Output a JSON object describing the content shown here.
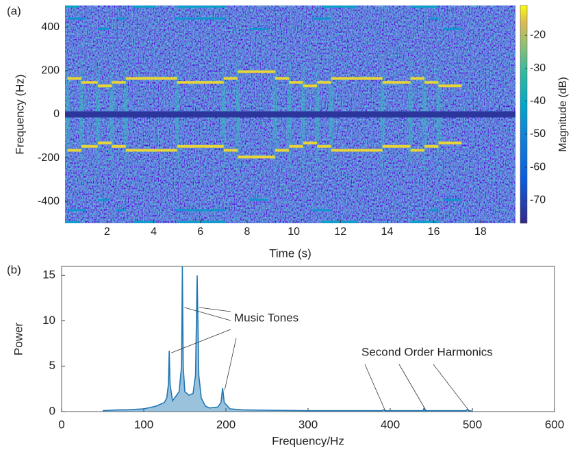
{
  "chart_data": [
    {
      "type": "spectrogram",
      "panel_label": "(a)",
      "x_label": "Time (s)",
      "y_label": "Frequency (Hz)",
      "colorbar_label": "Magnitude (dB)",
      "xlim": [
        0.2,
        19.5
      ],
      "xticks": [
        2,
        4,
        6,
        8,
        10,
        12,
        14,
        16,
        18
      ],
      "ylim": [
        -500,
        500
      ],
      "yticks": [
        -400,
        -200,
        0,
        200,
        400
      ],
      "clim": [
        -77,
        -11
      ],
      "cticks": [
        -70,
        -60,
        -50,
        -40,
        -30,
        -20
      ],
      "colormap": "parula",
      "mirror": true,
      "segments": [
        {
          "start": 0.3,
          "end": 0.9,
          "freq": 165,
          "level": -14
        },
        {
          "start": 0.9,
          "end": 1.6,
          "freq": 147,
          "level": -14
        },
        {
          "start": 1.6,
          "end": 2.2,
          "freq": 131,
          "level": -14
        },
        {
          "start": 2.2,
          "end": 2.8,
          "freq": 147,
          "level": -14
        },
        {
          "start": 2.8,
          "end": 5.0,
          "freq": 165,
          "level": -14
        },
        {
          "start": 5.0,
          "end": 7.0,
          "freq": 147,
          "level": -14
        },
        {
          "start": 7.0,
          "end": 7.6,
          "freq": 165,
          "level": -14
        },
        {
          "start": 7.6,
          "end": 9.2,
          "freq": 196,
          "level": -14
        },
        {
          "start": 9.2,
          "end": 9.8,
          "freq": 165,
          "level": -14
        },
        {
          "start": 9.8,
          "end": 10.4,
          "freq": 147,
          "level": -14
        },
        {
          "start": 10.4,
          "end": 11.0,
          "freq": 131,
          "level": -14
        },
        {
          "start": 11.0,
          "end": 11.6,
          "freq": 147,
          "level": -14
        },
        {
          "start": 11.6,
          "end": 13.8,
          "freq": 165,
          "level": -14
        },
        {
          "start": 13.8,
          "end": 15.0,
          "freq": 147,
          "level": -14
        },
        {
          "start": 15.0,
          "end": 15.6,
          "freq": 165,
          "level": -14
        },
        {
          "start": 15.6,
          "end": 16.2,
          "freq": 147,
          "level": -14
        },
        {
          "start": 16.2,
          "end": 17.2,
          "freq": 131,
          "level": -14
        },
        {
          "start": 0.2,
          "end": 19.5,
          "freq": 0,
          "level": -74
        },
        {
          "start": 0.3,
          "end": 1.1,
          "freq": 440,
          "level": -45
        },
        {
          "start": 2.4,
          "end": 2.8,
          "freq": 440,
          "level": -45
        },
        {
          "start": 4.9,
          "end": 7.1,
          "freq": 440,
          "level": -45
        },
        {
          "start": 10.8,
          "end": 11.6,
          "freq": 440,
          "level": -45
        },
        {
          "start": 15.8,
          "end": 16.2,
          "freq": 440,
          "level": -45
        },
        {
          "start": 1.6,
          "end": 2.1,
          "freq": 392,
          "level": -45
        },
        {
          "start": 8.1,
          "end": 8.9,
          "freq": 392,
          "level": -45
        },
        {
          "start": 16.4,
          "end": 17.2,
          "freq": 392,
          "level": -45
        },
        {
          "start": 0.2,
          "end": 0.8,
          "freq": 494,
          "level": -42
        },
        {
          "start": 3.1,
          "end": 4.1,
          "freq": 494,
          "level": -42
        },
        {
          "start": 5.0,
          "end": 7.1,
          "freq": 494,
          "level": -42
        },
        {
          "start": 11.2,
          "end": 12.7,
          "freq": 494,
          "level": -42
        },
        {
          "start": 15.0,
          "end": 16.2,
          "freq": 494,
          "level": -42
        }
      ]
    },
    {
      "type": "area",
      "panel_label": "(b)",
      "x_label": "Frequency/Hz",
      "y_label": "Power",
      "color": "#1f77b4",
      "xlim": [
        0,
        600
      ],
      "xticks": [
        0,
        100,
        200,
        300,
        400,
        500,
        600
      ],
      "ylim": [
        0,
        16
      ],
      "yticks": [
        0,
        5,
        10,
        15
      ],
      "x": [
        50,
        60,
        70,
        80,
        90,
        100,
        110,
        115,
        120,
        125,
        128,
        130,
        131,
        132,
        135,
        140,
        143,
        146,
        147,
        148,
        150,
        155,
        160,
        163,
        165,
        167,
        170,
        175,
        180,
        190,
        194,
        196,
        198,
        205,
        220,
        250,
        300,
        350,
        390,
        392,
        394,
        420,
        440,
        441,
        442,
        470,
        492,
        494,
        496,
        500
      ],
      "values": [
        0.1,
        0.15,
        0.2,
        0.2,
        0.25,
        0.3,
        0.5,
        0.6,
        0.8,
        1.0,
        1.5,
        3.0,
        6.7,
        3.0,
        1.2,
        1.8,
        2.2,
        5,
        16,
        5,
        2.2,
        1.8,
        2.0,
        4,
        15,
        4,
        1.5,
        0.6,
        0.4,
        0.5,
        1.0,
        2.6,
        1.0,
        0.3,
        0.2,
        0.15,
        0.1,
        0.1,
        0.1,
        0.2,
        0.1,
        0.1,
        0.1,
        0.35,
        0.1,
        0.1,
        0.1,
        0.25,
        0.1,
        0.05
      ],
      "annotations": [
        {
          "text": "Music Tones",
          "x": [
            165,
            147,
            131,
            196
          ]
        },
        {
          "text": "Second Order Harmonics",
          "x": [
            392,
            441,
            494
          ]
        }
      ]
    }
  ]
}
